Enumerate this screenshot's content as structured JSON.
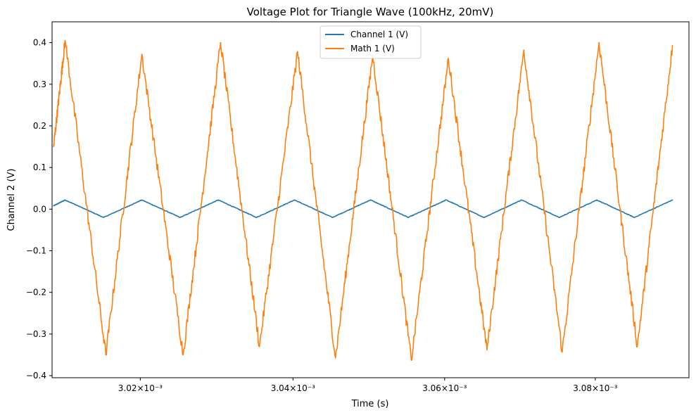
{
  "chart_data": {
    "type": "line",
    "title": "Voltage Plot for Triangle Wave (100kHz, 20mV)",
    "xlabel": "Time (s)",
    "ylabel": "Channel 2 (V)",
    "xlim": [
      0.0030085,
      0.0030925
    ],
    "ylim": [
      -0.405,
      0.45
    ],
    "x_scale": "log",
    "grid": false,
    "legend_position": "top-center",
    "x_ticks": [
      {
        "value": 0.00302,
        "label": "3.02×10⁻³"
      },
      {
        "value": 0.00304,
        "label": "3.04×10⁻³"
      },
      {
        "value": 0.00306,
        "label": "3.06×10⁻³"
      },
      {
        "value": 0.00308,
        "label": "3.08×10⁻³"
      }
    ],
    "y_ticks": [
      {
        "value": 0.4,
        "label": "0.4"
      },
      {
        "value": 0.3,
        "label": "0.3"
      },
      {
        "value": 0.2,
        "label": "0.2"
      },
      {
        "value": 0.1,
        "label": "0.1"
      },
      {
        "value": 0.0,
        "label": "0.0"
      },
      {
        "value": -0.1,
        "label": "−0.1"
      },
      {
        "value": -0.2,
        "label": "−0.2"
      },
      {
        "value": -0.3,
        "label": "−0.3"
      },
      {
        "value": -0.4,
        "label": "−0.4"
      }
    ],
    "series": [
      {
        "name": "Channel 1 (V)",
        "color": "#1f77b4",
        "x": [
          0.0030087,
          0.0030102,
          0.0030152,
          0.0030202,
          0.0030252,
          0.0030302,
          0.0030352,
          0.0030402,
          0.0030452,
          0.0030502,
          0.0030552,
          0.0030602,
          0.0030652,
          0.0030702,
          0.0030752,
          0.0030802,
          0.0030852,
          0.0030903
        ],
        "y": [
          0.008,
          0.022,
          -0.02,
          0.022,
          -0.02,
          0.022,
          -0.02,
          0.022,
          -0.02,
          0.022,
          -0.02,
          0.022,
          -0.02,
          0.022,
          -0.02,
          0.022,
          -0.02,
          0.022
        ]
      },
      {
        "name": "Math 1 (V)",
        "color": "#ff7f0e",
        "x": [
          0.0030087,
          0.0030102,
          0.0030155,
          0.0030202,
          0.0030256,
          0.0030305,
          0.0030356,
          0.0030406,
          0.0030456,
          0.0030505,
          0.0030556,
          0.0030605,
          0.0030656,
          0.0030705,
          0.0030756,
          0.0030805,
          0.0030856,
          0.0030903
        ],
        "y": [
          0.15,
          0.405,
          -0.35,
          0.372,
          -0.35,
          0.4,
          -0.33,
          0.378,
          -0.357,
          0.37,
          -0.363,
          0.362,
          -0.338,
          0.382,
          -0.343,
          0.4,
          -0.33,
          0.393
        ]
      }
    ]
  }
}
